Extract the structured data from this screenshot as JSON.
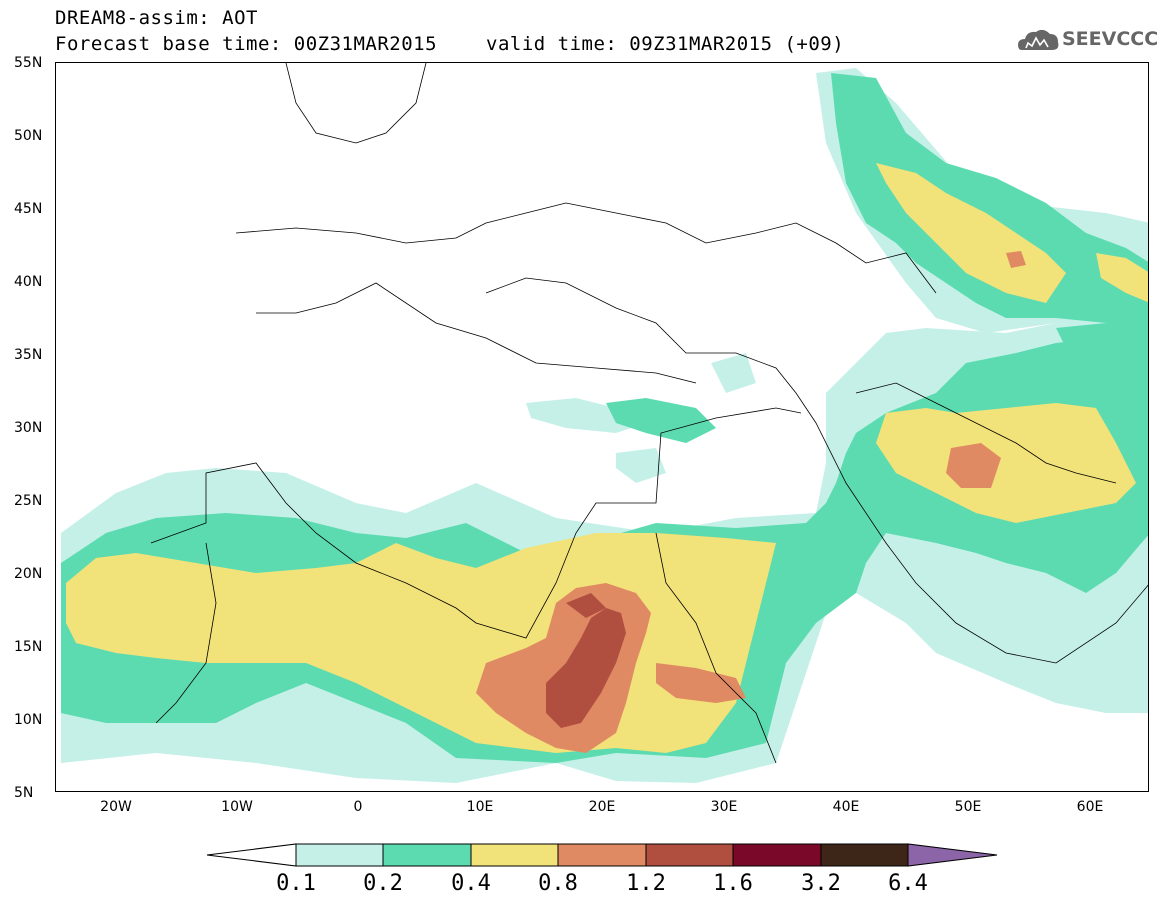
{
  "header": {
    "title": "DREAM8-assim: AOT",
    "base_time": "Forecast base time: 00Z31MAR2015",
    "valid_time": "valid time: 09Z31MAR2015 (+09)",
    "logo_text": "SEEVCCC"
  },
  "map": {
    "lat_range": [
      5,
      55
    ],
    "lon_range": [
      -25,
      65
    ],
    "lat_labels": [
      "55N",
      "50N",
      "45N",
      "40N",
      "35N",
      "30N",
      "25N",
      "20N",
      "15N",
      "10N",
      "5N"
    ],
    "lon_labels": [
      "20W",
      "10W",
      "0",
      "10E",
      "20E",
      "30E",
      "40E",
      "50E",
      "60E"
    ]
  },
  "legend": {
    "levels": [
      "0.1",
      "0.2",
      "0.4",
      "0.8",
      "1.2",
      "1.6",
      "3.2",
      "6.4"
    ],
    "colors": [
      "#ffffff",
      "#c4f0e8",
      "#5ddbb0",
      "#f2e27a",
      "#e08a64",
      "#b04e40",
      "#7a0828",
      "#3d2517",
      "#8c64a8"
    ]
  }
}
